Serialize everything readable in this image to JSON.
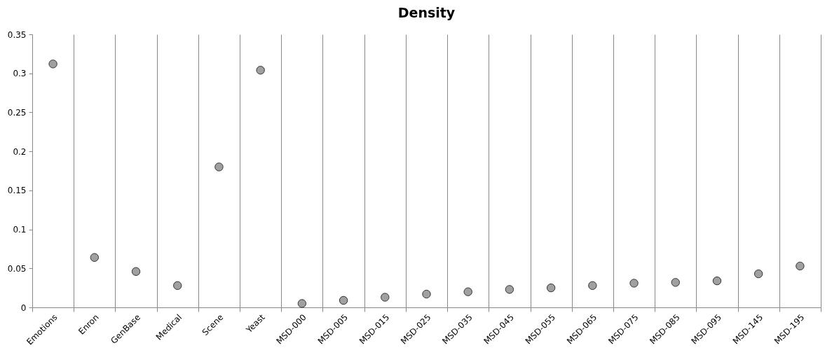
{
  "chart_data": {
    "type": "scatter",
    "title": "Density",
    "categories": [
      "Emotions",
      "Enron",
      "GenBase",
      "Medical",
      "Scene",
      "Yeast",
      "MSD-000",
      "MSD-005",
      "MSD-015",
      "MSD-025",
      "MSD-035",
      "MSD-045",
      "MSD-055",
      "MSD-065",
      "MSD-075",
      "MSD-085",
      "MSD-095",
      "MSD-145",
      "MSD-195"
    ],
    "values": [
      0.312,
      0.064,
      0.046,
      0.028,
      0.18,
      0.304,
      0.005,
      0.009,
      0.013,
      0.017,
      0.02,
      0.023,
      0.025,
      0.028,
      0.031,
      0.032,
      0.034,
      0.043,
      0.053
    ],
    "color": "#a0a0a0",
    "marker": "circle",
    "grid": "x",
    "ylim": [
      0,
      0.35
    ],
    "yticks": [
      0,
      0.05,
      0.1,
      0.15,
      0.2,
      0.25,
      0.3,
      0.35
    ]
  }
}
